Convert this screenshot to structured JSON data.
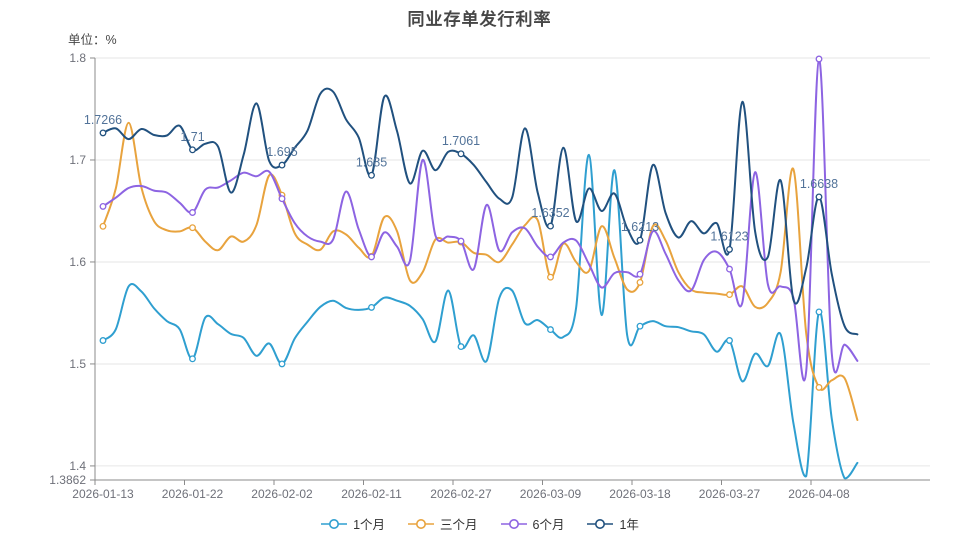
{
  "title": "同业存单发行利率",
  "unit_label": "单位：%",
  "colors": {
    "title_text": "#464646",
    "axis_text": "#6e7079",
    "axis_line": "#8b8b8b",
    "grid_line": "#e6e6e6",
    "annotation_text": "#527399",
    "legend_text": "#333333",
    "background": "#ffffff"
  },
  "chart_data": {
    "type": "line",
    "title": "同业存单发行利率",
    "ylabel": "单位：%",
    "grid": true,
    "legend_position": "bottom",
    "ylim": [
      1.3862,
      1.8
    ],
    "y_ticks": [
      1.8,
      1.7,
      1.6,
      1.5,
      1.4
    ],
    "y_min_label": "1.3862",
    "x_tick_labels": [
      "2026-01-13",
      "2026-01-22",
      "2026-02-02",
      "2026-02-11",
      "2026-02-27",
      "2026-03-09",
      "2026-03-18",
      "2026-03-27",
      "2026-04-08"
    ],
    "marker_indices": [
      0,
      7,
      14,
      21,
      28,
      35,
      42,
      49,
      56
    ],
    "annotated_series": "1年",
    "annotations": [
      "1.7266",
      "1.71",
      "1.695",
      "1.685",
      "1.7061",
      "1.6352",
      "1.6213",
      "1.6123",
      "1.6638"
    ],
    "series": [
      {
        "name": "1个月",
        "color": "#2f9fd0",
        "values": [
          1.523,
          1.534,
          1.576,
          1.571,
          1.5545,
          1.542,
          1.534,
          1.505,
          1.5455,
          1.539,
          1.5295,
          1.5255,
          1.508,
          1.52,
          1.5,
          1.525,
          1.5415,
          1.556,
          1.562,
          1.555,
          1.553,
          1.5554,
          1.565,
          1.562,
          1.557,
          1.544,
          1.522,
          1.572,
          1.517,
          1.528,
          1.503,
          1.565,
          1.572,
          1.54,
          1.543,
          1.5337,
          1.5264,
          1.555,
          1.705,
          1.548,
          1.69,
          1.528,
          1.537,
          1.542,
          1.537,
          1.536,
          1.532,
          1.529,
          1.512,
          1.523,
          1.483,
          1.51,
          1.498,
          1.529,
          1.442,
          1.39,
          1.551,
          1.446,
          1.388,
          1.403
        ]
      },
      {
        "name": "三个月",
        "color": "#e8a33e",
        "values": [
          1.635,
          1.672,
          1.7365,
          1.673,
          1.64,
          1.631,
          1.63,
          1.6336,
          1.62,
          1.6115,
          1.625,
          1.62,
          1.636,
          1.685,
          1.6655,
          1.628,
          1.617,
          1.612,
          1.63,
          1.627,
          1.614,
          1.6056,
          1.644,
          1.63,
          1.582,
          1.59,
          1.622,
          1.619,
          1.6195,
          1.609,
          1.607,
          1.6,
          1.617,
          1.636,
          1.641,
          1.5851,
          1.618,
          1.6,
          1.591,
          1.635,
          1.604,
          1.573,
          1.58,
          1.635,
          1.621,
          1.59,
          1.573,
          1.57,
          1.569,
          1.568,
          1.576,
          1.556,
          1.56,
          1.59,
          1.691,
          1.53,
          1.477,
          1.484,
          1.486,
          1.445
        ]
      },
      {
        "name": "6个月",
        "color": "#8d64e2",
        "values": [
          1.6545,
          1.663,
          1.6725,
          1.6745,
          1.67,
          1.668,
          1.658,
          1.6485,
          1.671,
          1.673,
          1.68,
          1.6875,
          1.684,
          1.6885,
          1.662,
          1.638,
          1.625,
          1.62,
          1.622,
          1.669,
          1.632,
          1.605,
          1.629,
          1.615,
          1.601,
          1.7,
          1.626,
          1.625,
          1.6205,
          1.593,
          1.656,
          1.611,
          1.629,
          1.633,
          1.615,
          1.605,
          1.619,
          1.621,
          1.598,
          1.575,
          1.589,
          1.59,
          1.588,
          1.63,
          1.608,
          1.582,
          1.572,
          1.602,
          1.61,
          1.593,
          1.56,
          1.688,
          1.578,
          1.576,
          1.565,
          1.493,
          1.799,
          1.51,
          1.519,
          1.503
        ]
      },
      {
        "name": "1年",
        "color": "#21517f",
        "values": [
          1.7266,
          1.731,
          1.7205,
          1.7304,
          1.7245,
          1.724,
          1.7335,
          1.71,
          1.716,
          1.713,
          1.668,
          1.705,
          1.7555,
          1.699,
          1.695,
          1.712,
          1.729,
          1.765,
          1.767,
          1.74,
          1.722,
          1.685,
          1.762,
          1.728,
          1.677,
          1.709,
          1.69,
          1.708,
          1.7061,
          1.695,
          1.678,
          1.662,
          1.663,
          1.731,
          1.668,
          1.6352,
          1.712,
          1.64,
          1.672,
          1.65,
          1.667,
          1.633,
          1.6213,
          1.695,
          1.648,
          1.624,
          1.64,
          1.628,
          1.638,
          1.6123,
          1.757,
          1.63,
          1.605,
          1.68,
          1.563,
          1.594,
          1.6638,
          1.588,
          1.537,
          1.529
        ]
      }
    ]
  }
}
